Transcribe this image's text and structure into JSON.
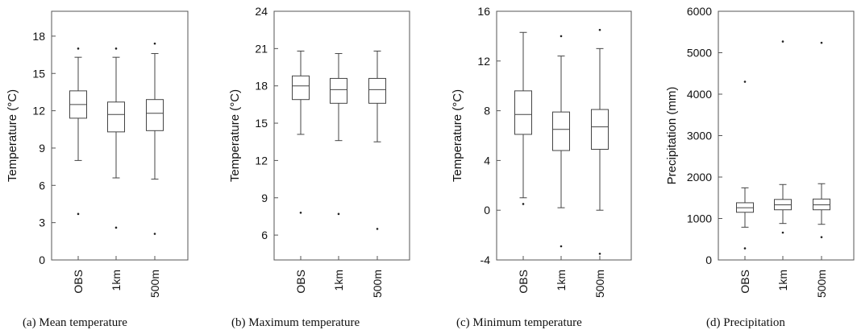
{
  "chart_data": [
    {
      "type": "box",
      "caption": "(a)  Mean  temperature",
      "ylabel": "Temperature (°C)",
      "ylim": [
        0,
        20
      ],
      "yticks": [
        "0",
        "3",
        "6",
        "9",
        "12",
        "15",
        "18"
      ],
      "categories": [
        "OBS",
        "1km",
        "500m"
      ],
      "boxes": [
        {
          "min": 8.0,
          "q1": 11.4,
          "median": 12.5,
          "q3": 13.6,
          "max": 16.3,
          "outliers": [
            3.7,
            17.0
          ]
        },
        {
          "min": 6.6,
          "q1": 10.3,
          "median": 11.7,
          "q3": 12.7,
          "max": 16.3,
          "outliers": [
            2.6,
            17.0
          ]
        },
        {
          "min": 6.5,
          "q1": 10.4,
          "median": 11.8,
          "q3": 12.9,
          "max": 16.6,
          "outliers": [
            2.1,
            17.4
          ]
        }
      ]
    },
    {
      "type": "box",
      "caption": "(b)  Maximum  temperature",
      "ylabel": "Temperature (°C)",
      "ylim": [
        4,
        24
      ],
      "yticks": [
        "6",
        "9",
        "12",
        "15",
        "18",
        "21",
        "24"
      ],
      "categories": [
        "OBS",
        "1km",
        "500m"
      ],
      "boxes": [
        {
          "min": 14.1,
          "q1": 16.9,
          "median": 18.0,
          "q3": 18.8,
          "max": 20.8,
          "outliers": [
            7.8
          ]
        },
        {
          "min": 13.6,
          "q1": 16.6,
          "median": 17.7,
          "q3": 18.6,
          "max": 20.6,
          "outliers": [
            7.7
          ]
        },
        {
          "min": 13.5,
          "q1": 16.6,
          "median": 17.7,
          "q3": 18.6,
          "max": 20.8,
          "outliers": [
            6.5
          ]
        }
      ]
    },
    {
      "type": "box",
      "caption": "(c)  Minimum  temperature",
      "ylabel": "Temperature (°C)",
      "ylim": [
        -4,
        16
      ],
      "yticks": [
        "-4",
        "0",
        "4",
        "8",
        "12",
        "16"
      ],
      "categories": [
        "OBS",
        "1km",
        "500m"
      ],
      "boxes": [
        {
          "min": 1.0,
          "q1": 6.1,
          "median": 7.7,
          "q3": 9.6,
          "max": 14.3,
          "outliers": [
            0.5
          ]
        },
        {
          "min": 0.2,
          "q1": 4.8,
          "median": 6.5,
          "q3": 7.9,
          "max": 12.4,
          "outliers": [
            -2.9,
            14.0
          ]
        },
        {
          "min": 0.0,
          "q1": 4.9,
          "median": 6.7,
          "q3": 8.1,
          "max": 13.0,
          "outliers": [
            -3.5,
            14.5
          ]
        }
      ]
    },
    {
      "type": "box",
      "caption": "(d)  Precipitation",
      "ylabel": "Precipitation (mm)",
      "ylim": [
        0,
        6000
      ],
      "yticks": [
        "0",
        "1000",
        "2000",
        "3000",
        "4000",
        "5000",
        "6000"
      ],
      "categories": [
        "OBS",
        "1km",
        "500m"
      ],
      "boxes": [
        {
          "min": 790,
          "q1": 1150,
          "median": 1260,
          "q3": 1380,
          "max": 1740,
          "outliers": [
            280,
            4300
          ]
        },
        {
          "min": 880,
          "q1": 1210,
          "median": 1330,
          "q3": 1460,
          "max": 1820,
          "outliers": [
            660,
            5270
          ]
        },
        {
          "min": 860,
          "q1": 1210,
          "median": 1330,
          "q3": 1470,
          "max": 1840,
          "outliers": [
            550,
            5240
          ]
        }
      ]
    }
  ]
}
